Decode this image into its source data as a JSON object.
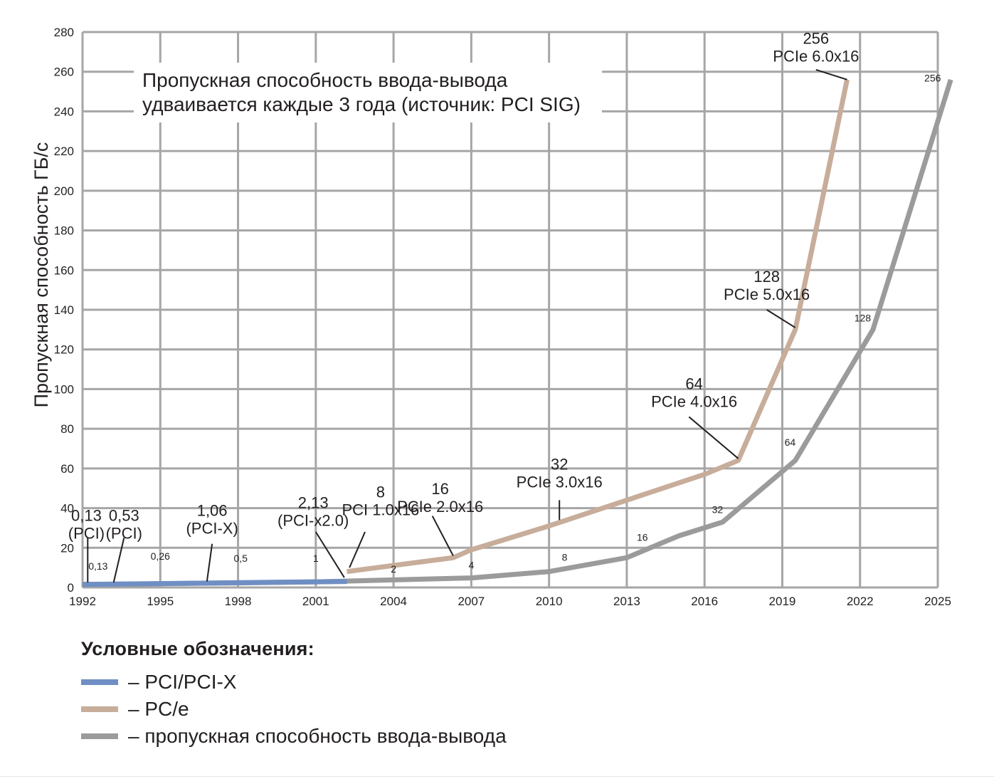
{
  "chart_data": {
    "type": "line",
    "title": "Пропускная способность ввода-вывода удваивается каждые 3 года (источник: PCI SIG)",
    "title_lines": [
      "Пропускная способность ввода-вывода",
      "удваивается каждые 3 года (источник: PCI SIG)"
    ],
    "xlabel": "",
    "ylabel": "Пропускная способность ГБ/с",
    "xlim": [
      1992,
      2025
    ],
    "ylim": [
      0,
      280
    ],
    "x_ticks": [
      "1992",
      "1995",
      "1998",
      "2001",
      "2004",
      "2007",
      "2010",
      "2013",
      "2016",
      "2019",
      "2022",
      "2025"
    ],
    "y_ticks": [
      "0",
      "20",
      "40",
      "60",
      "80",
      "100",
      "120",
      "140",
      "160",
      "180",
      "200",
      "220",
      "240",
      "260",
      "280"
    ],
    "grid": true,
    "colors": {
      "pci": "#6f8fc4",
      "pcie": "#c7ad9a",
      "io": "#9b9b9b",
      "grid": "#a6a6a6",
      "text": "#231f20"
    },
    "series": [
      {
        "name": "PCI/PCI-X",
        "color": "#6f8fc4",
        "x": [
          1992,
          2002.2
        ],
        "y": [
          1.5,
          3.0
        ]
      },
      {
        "name": "PC/e",
        "color": "#c7ad9a",
        "x": [
          2002.2,
          2006.3,
          2007,
          2010,
          2013,
          2016,
          2017.3,
          2019.5,
          2021.5
        ],
        "y": [
          8,
          15,
          19,
          31,
          44,
          57,
          64,
          130,
          256
        ]
      },
      {
        "name": "пропускная способность ввода-вывода",
        "color": "#9b9b9b",
        "x": [
          1992,
          1995,
          1998,
          2001,
          2004,
          2007,
          2010,
          2013,
          2015,
          2016.7,
          2019.5,
          2022.5,
          2025.5
        ],
        "y": [
          1.5,
          1.9,
          2.3,
          2.8,
          3.8,
          4.8,
          8,
          15,
          26,
          33,
          64,
          130,
          256
        ]
      }
    ],
    "io_labels": [
      {
        "text": "0,13",
        "x": 1992.6,
        "y": 9
      },
      {
        "text": "0,26",
        "x": 1995,
        "y": 14
      },
      {
        "text": "0,5",
        "x": 1998.1,
        "y": 13
      },
      {
        "text": "1",
        "x": 2001,
        "y": 13
      },
      {
        "text": "2",
        "x": 2004,
        "y": 7.5
      },
      {
        "text": "4",
        "x": 2007,
        "y": 9.5
      },
      {
        "text": "8",
        "x": 2010.6,
        "y": 13.5
      },
      {
        "text": "16",
        "x": 2013.6,
        "y": 23.5
      },
      {
        "text": "32",
        "x": 2016.5,
        "y": 37.5
      },
      {
        "text": "64",
        "x": 2019.3,
        "y": 71.5
      },
      {
        "text": "128",
        "x": 2022.1,
        "y": 134
      },
      {
        "text": "256",
        "x": 2024.8,
        "y": 255
      }
    ],
    "callouts": [
      {
        "lines": [
          "0,13",
          "(PCI)"
        ],
        "tx": 1992.15,
        "ty": 33.5,
        "lx1": 1992.2,
        "ly1": 25,
        "lx2": 1992.2,
        "ly2": 2.5
      },
      {
        "lines": [
          "0,53",
          "(PCI)"
        ],
        "tx": 1993.6,
        "ty": 33.5,
        "lx1": 1993.6,
        "ly1": 25,
        "lx2": 1993.2,
        "ly2": 2.5
      },
      {
        "lines": [
          "1,06",
          "(PCI-X)"
        ],
        "tx": 1997.0,
        "ty": 36,
        "lx1": 1997.0,
        "ly1": 22,
        "lx2": 1996.8,
        "ly2": 3
      },
      {
        "lines": [
          "2,13",
          "(PCI-x2.0)"
        ],
        "tx": 2000.9,
        "ty": 40,
        "lx1": 2001.0,
        "ly1": 28,
        "lx2": 2002.1,
        "ly2": 5
      },
      {
        "lines": [
          "8",
          "PCI 1.0x16"
        ],
        "tx": 2003.5,
        "ty": 45.5,
        "lx1": 2002.9,
        "ly1": 28,
        "lx2": 2002.3,
        "ly2": 10
      },
      {
        "lines": [
          "16",
          "PCIe 2.0x16"
        ],
        "tx": 2005.8,
        "ty": 47,
        "lx1": 2005.5,
        "ly1": 36,
        "lx2": 2006.3,
        "ly2": 16
      },
      {
        "lines": [
          "32",
          "PCIe 3.0x16"
        ],
        "tx": 2010.4,
        "ty": 59.5,
        "lx1": 2010.4,
        "ly1": 44,
        "lx2": 2010.4,
        "ly2": 34
      },
      {
        "lines": [
          "64",
          "PCIe 4.0x16"
        ],
        "tx": 2015.6,
        "ty": 100,
        "lx1": 2015.4,
        "ly1": 86,
        "lx2": 2017.3,
        "ly2": 65
      },
      {
        "lines": [
          "128",
          "PCIe 5.0x16"
        ],
        "tx": 2018.4,
        "ty": 154,
        "lx1": 2018.4,
        "ly1": 140,
        "lx2": 2019.5,
        "ly2": 131
      },
      {
        "lines": [
          "256",
          "PCIe 6.0x16"
        ],
        "tx": 2020.3,
        "ty": 274,
        "lx1": 2020.3,
        "ly1": 261,
        "lx2": 2021.5,
        "ly2": 256
      }
    ]
  },
  "legend": {
    "title": "Условные обозначения:",
    "items": [
      {
        "label": "– PCI/PCI-X",
        "color": "#6f8fc4"
      },
      {
        "label": "– PC/e",
        "color": "#c7ad9a"
      },
      {
        "label": "– пропускная способность ввода-вывода",
        "color": "#9b9b9b"
      }
    ]
  }
}
